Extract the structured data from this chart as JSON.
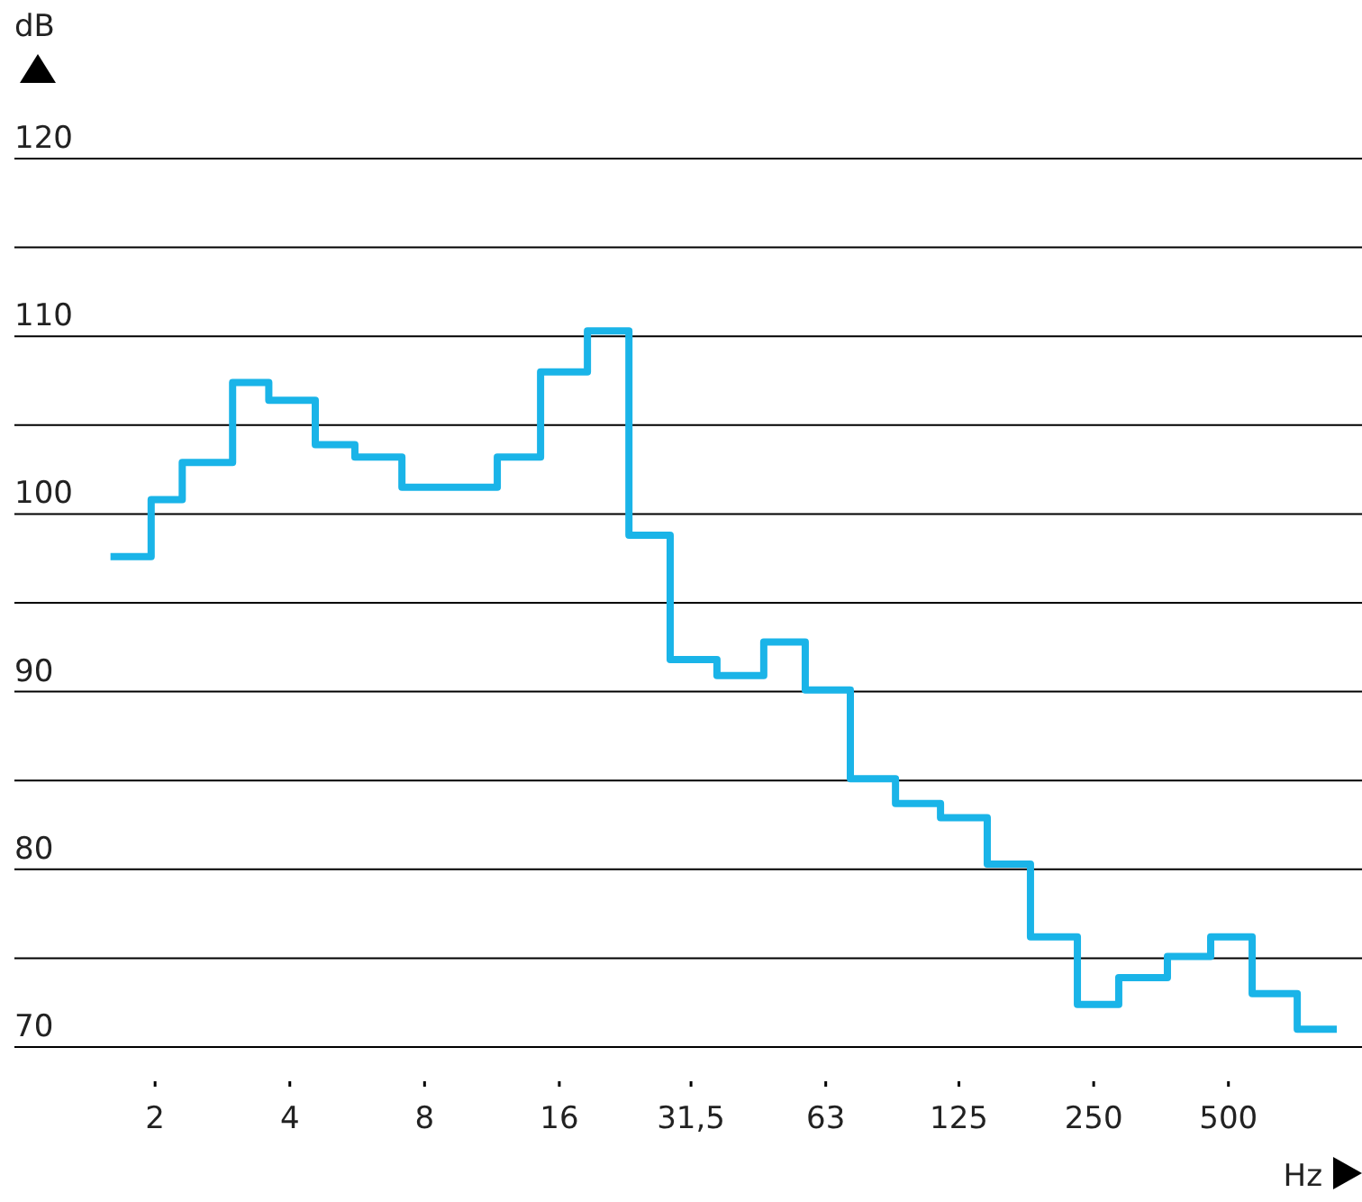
{
  "chart_data": {
    "type": "step",
    "xlabel": "Hz",
    "ylabel": "dB",
    "x": [
      1.59,
      1.96,
      2.3,
      2.98,
      3.59,
      4.56,
      5.59,
      7.12,
      11.63,
      14.53,
      18.49,
      22.89,
      28.3,
      36.0,
      45.8,
      56.7,
      71.5,
      90.2,
      113.7,
      144.6,
      180.6,
      229.9,
      284.4,
      365.3,
      456.4,
      564.9,
      712.4,
      873.2
    ],
    "series": [
      {
        "color": "#1ab4e8",
        "values": [
          97.6,
          100.8,
          102.9,
          107.4,
          106.4,
          103.9,
          103.2,
          101.5,
          103.2,
          108.0,
          110.3,
          98.8,
          91.8,
          90.9,
          92.8,
          90.1,
          85.1,
          83.7,
          82.9,
          80.3,
          76.2,
          72.4,
          73.9,
          75.1,
          76.2,
          73.0,
          71.0,
          71.0
        ]
      }
    ],
    "log": "x",
    "xlim": [
      0.97,
      994
    ],
    "xticks": [
      2,
      4,
      8,
      16,
      {
        "value": 31.5,
        "label": "31,5"
      },
      63,
      125,
      250,
      500
    ],
    "ylim": [
      70,
      120
    ],
    "yticks": [
      70,
      {
        "value": 75,
        "label": null
      },
      80,
      {
        "value": 85,
        "label": null
      },
      90,
      {
        "value": 95,
        "label": null
      },
      100,
      {
        "value": 105,
        "label": null
      },
      110,
      {
        "value": 115,
        "label": null
      },
      120
    ],
    "grid": "y"
  }
}
